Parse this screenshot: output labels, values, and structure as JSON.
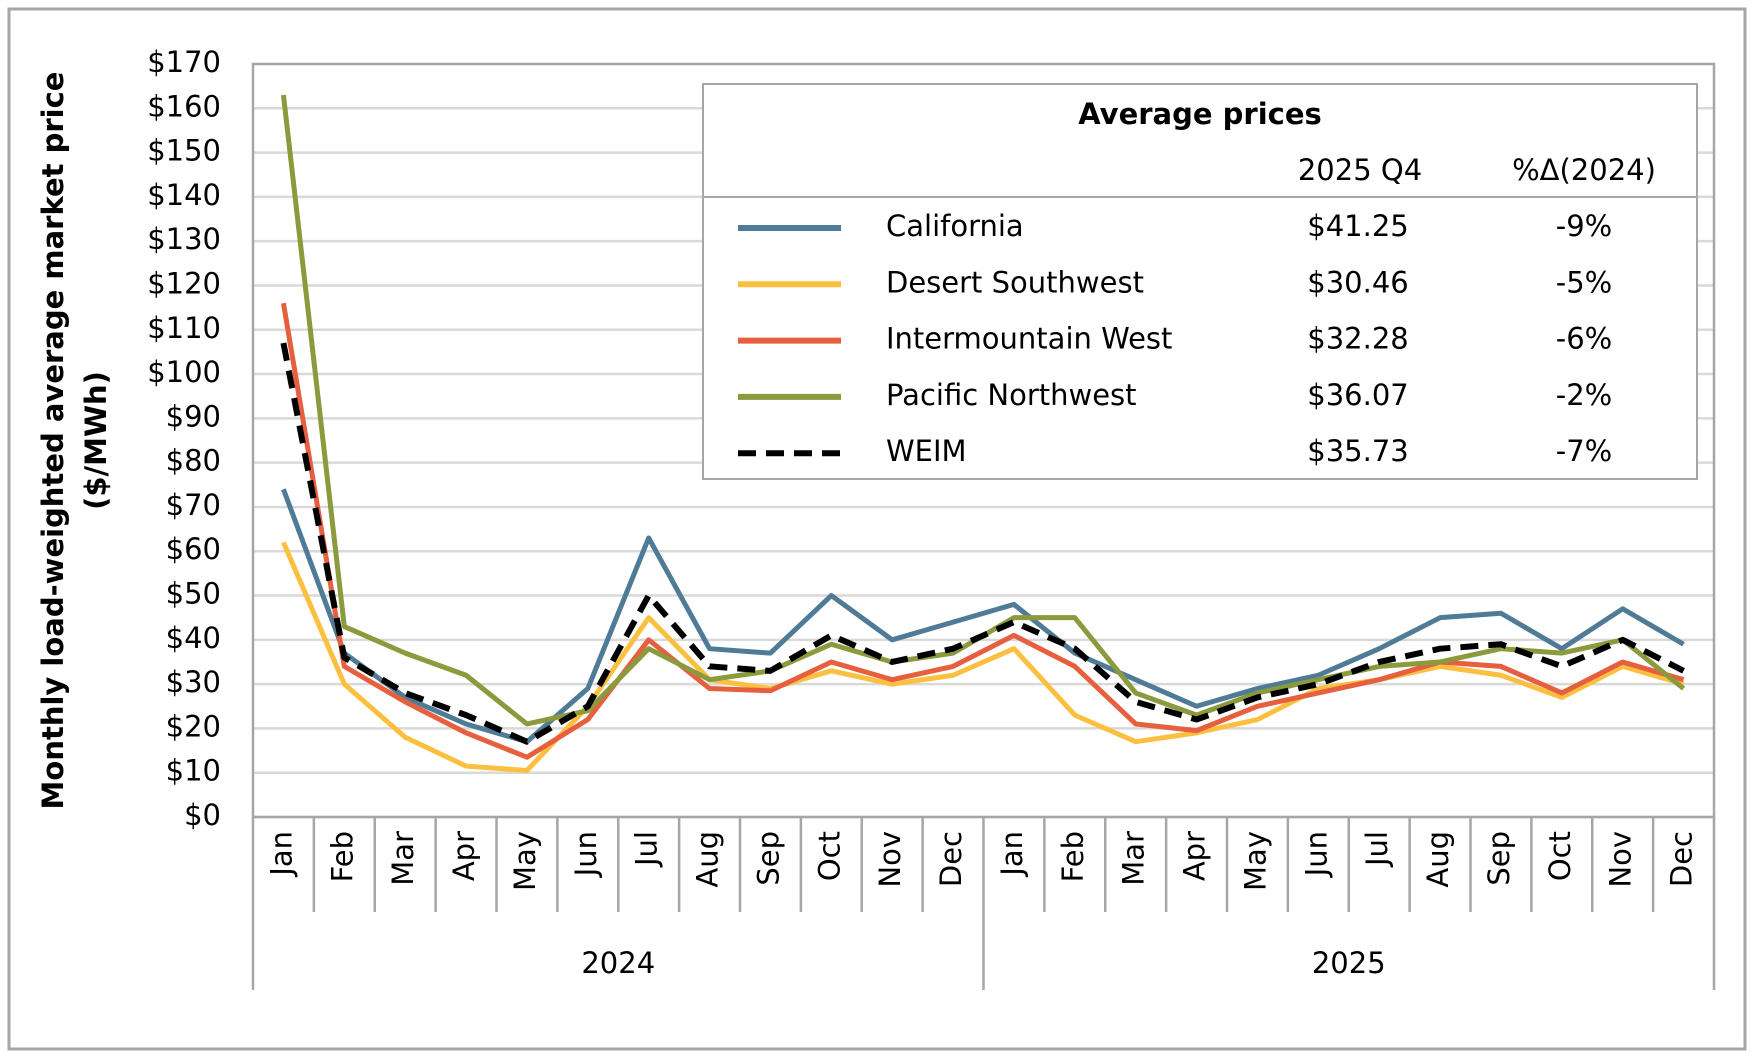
{
  "chart_data": {
    "type": "line",
    "y_label": [
      "Monthly load-weighted average market price",
      "($/MWh)"
    ],
    "categories": [
      "Jan",
      "Feb",
      "Mar",
      "Apr",
      "May",
      "Jun",
      "Jul",
      "Aug",
      "Sep",
      "Oct",
      "Nov",
      "Dec",
      "Jan",
      "Feb",
      "Mar",
      "Apr",
      "May",
      "Jun",
      "Jul",
      "Aug",
      "Sep",
      "Oct",
      "Nov",
      "Dec"
    ],
    "year_labels": [
      "2024",
      "2025"
    ],
    "ylim": [
      0,
      170
    ],
    "yticks": [
      {
        "value": 0,
        "label": "$0"
      },
      {
        "value": 10,
        "label": "$10"
      },
      {
        "value": 20,
        "label": "$20"
      },
      {
        "value": 30,
        "label": "$30"
      },
      {
        "value": 40,
        "label": "$40"
      },
      {
        "value": 50,
        "label": "$50"
      },
      {
        "value": 60,
        "label": "$60"
      },
      {
        "value": 70,
        "label": "$70"
      },
      {
        "value": 80,
        "label": "$80"
      },
      {
        "value": 90,
        "label": "$90"
      },
      {
        "value": 100,
        "label": "$100"
      },
      {
        "value": 110,
        "label": "$110"
      },
      {
        "value": 120,
        "label": "$120"
      },
      {
        "value": 130,
        "label": "$130"
      },
      {
        "value": 140,
        "label": "$140"
      },
      {
        "value": 150,
        "label": "$150"
      },
      {
        "value": 160,
        "label": "$160"
      },
      {
        "value": 170,
        "label": "$170"
      }
    ],
    "grid": true,
    "legend_title": "Average prices",
    "legend_columns": [
      "2025 Q4",
      "%Δ(2024)"
    ],
    "series": [
      {
        "name": "California",
        "color": "#4f7b97",
        "dashed": false,
        "q4_avg": "$41.25",
        "change": "-9%",
        "values": [
          74,
          37,
          27,
          21,
          17,
          29,
          63,
          38,
          37,
          50,
          40,
          44,
          48,
          37,
          31,
          25,
          29,
          32,
          38,
          45,
          46,
          38,
          47,
          39
        ]
      },
      {
        "name": "Desert Southwest",
        "color": "#fcbf3f",
        "dashed": false,
        "q4_avg": "$30.46",
        "change": "-5%",
        "values": [
          62,
          30,
          18,
          11.5,
          10.5,
          25,
          45,
          31,
          29,
          33,
          30,
          32,
          38,
          23,
          17,
          19,
          22,
          29,
          31,
          34,
          32,
          27,
          34,
          30
        ]
      },
      {
        "name": "Intermountain West",
        "color": "#e6603f",
        "dashed": false,
        "q4_avg": "$32.28",
        "change": "-6%",
        "values": [
          116,
          34,
          26,
          19,
          13.5,
          22,
          40,
          29,
          28.5,
          35,
          31,
          34,
          41,
          34,
          21,
          19.5,
          25,
          28,
          31,
          35,
          34,
          28,
          35,
          31
        ]
      },
      {
        "name": "Pacific Northwest",
        "color": "#8a9a3c",
        "dashed": false,
        "q4_avg": "$36.07",
        "change": "-2%",
        "values": [
          163,
          43,
          37,
          32,
          21,
          24,
          38,
          31,
          33,
          39,
          35,
          37,
          45,
          45,
          28,
          23,
          28,
          31,
          34,
          35,
          38,
          37,
          40,
          29
        ]
      },
      {
        "name": "WEIM",
        "color": "#000000",
        "dashed": true,
        "q4_avg": "$35.73",
        "change": "-7%",
        "values": [
          107,
          36,
          28,
          23,
          17,
          25,
          50,
          34,
          33,
          41,
          35,
          38,
          44,
          38,
          26,
          22,
          27,
          30,
          35,
          38,
          39,
          34,
          40,
          33
        ]
      }
    ]
  }
}
